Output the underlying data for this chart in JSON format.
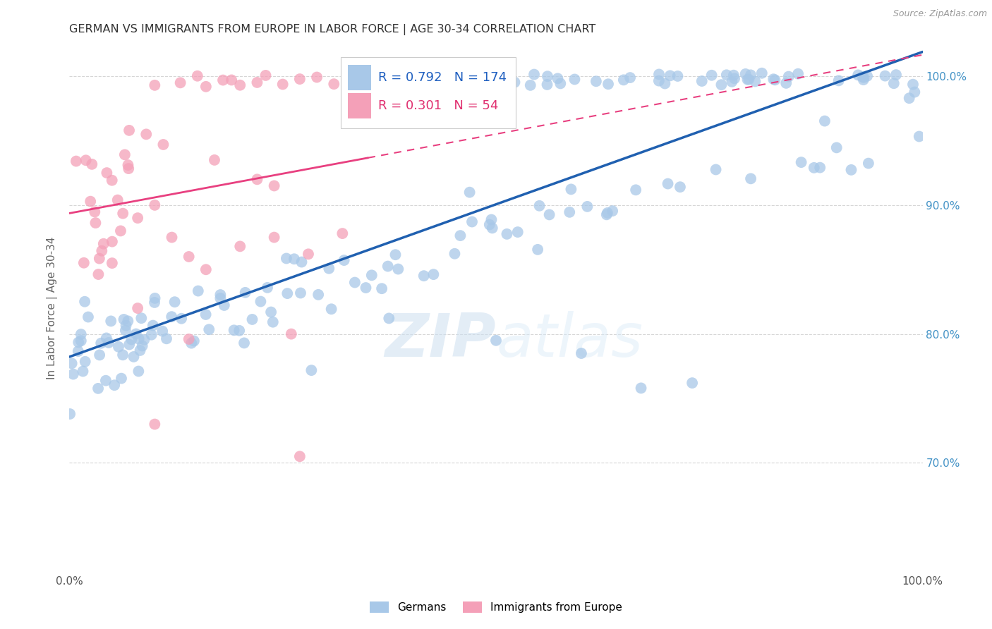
{
  "title": "GERMAN VS IMMIGRANTS FROM EUROPE IN LABOR FORCE | AGE 30-34 CORRELATION CHART",
  "source": "Source: ZipAtlas.com",
  "ylabel": "In Labor Force | Age 30-34",
  "xlim": [
    0,
    1.0
  ],
  "ylim": [
    0.615,
    1.025
  ],
  "ytick_labels": [
    "70.0%",
    "80.0%",
    "90.0%",
    "100.0%"
  ],
  "ytick_positions": [
    0.7,
    0.8,
    0.9,
    1.0
  ],
  "legend_label1": "Germans",
  "legend_label2": "Immigrants from Europe",
  "R1": 0.792,
  "N1": 174,
  "R2": 0.301,
  "N2": 54,
  "color_blue": "#a8c8e8",
  "color_pink": "#f4a0b8",
  "line_color_blue": "#2060b0",
  "line_color_pink": "#e84080",
  "watermark_zip": "ZIP",
  "watermark_atlas": "atlas",
  "title_color": "#333333",
  "axis_label_color": "#666666",
  "tick_color_right": "#4292c6",
  "background_color": "#ffffff",
  "grid_color": "#cccccc"
}
